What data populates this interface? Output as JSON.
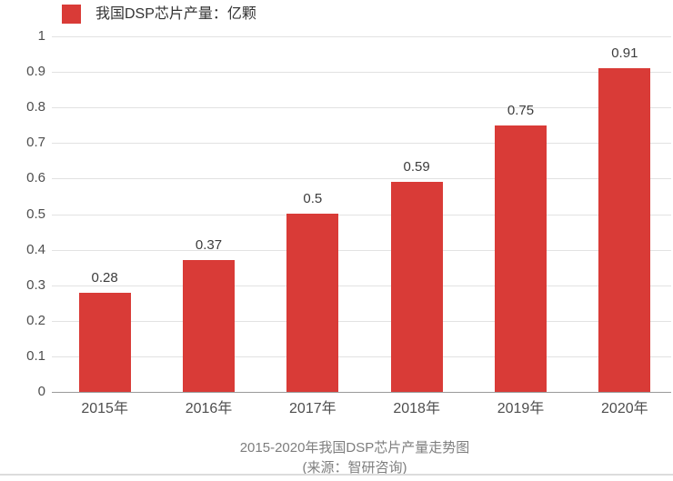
{
  "legend": {
    "label": "我国DSP芯片产量：亿颗",
    "marker_color": "#d93b37"
  },
  "chart_data": {
    "type": "bar",
    "title": "2015-2020年我国DSP芯片产量走势图",
    "series_name": "我国DSP芯片产量",
    "unit": "亿颗",
    "categories": [
      "2015年",
      "2016年",
      "2017年",
      "2018年",
      "2019年",
      "2020年"
    ],
    "values": [
      0.28,
      0.37,
      0.5,
      0.59,
      0.75,
      0.91
    ],
    "value_labels": [
      "0.28",
      "0.37",
      "0.5",
      "0.59",
      "0.75",
      "0.91"
    ],
    "ylim": [
      0,
      1
    ],
    "yticks": [
      0,
      0.1,
      0.2,
      0.3,
      0.4,
      0.5,
      0.6,
      0.7,
      0.8,
      0.9,
      1
    ],
    "ytick_labels": [
      "0",
      "0.1",
      "0.2",
      "0.3",
      "0.4",
      "0.5",
      "0.6",
      "0.7",
      "0.8",
      "0.9",
      "1"
    ],
    "grid": true,
    "legend_position": "top-left",
    "bar_color": "#d93b37"
  },
  "caption": {
    "title": "2015-2020年我国DSP芯片产量走势图",
    "source": "(来源：智研咨询)"
  },
  "colors": {
    "bar": "#d93b37",
    "grid": "#e2e2e2",
    "axis_line": "#9a9a9a",
    "axis_text": "#4e4e4e",
    "value_text": "#3c3c3c",
    "caption_text": "#7e7e7e"
  }
}
